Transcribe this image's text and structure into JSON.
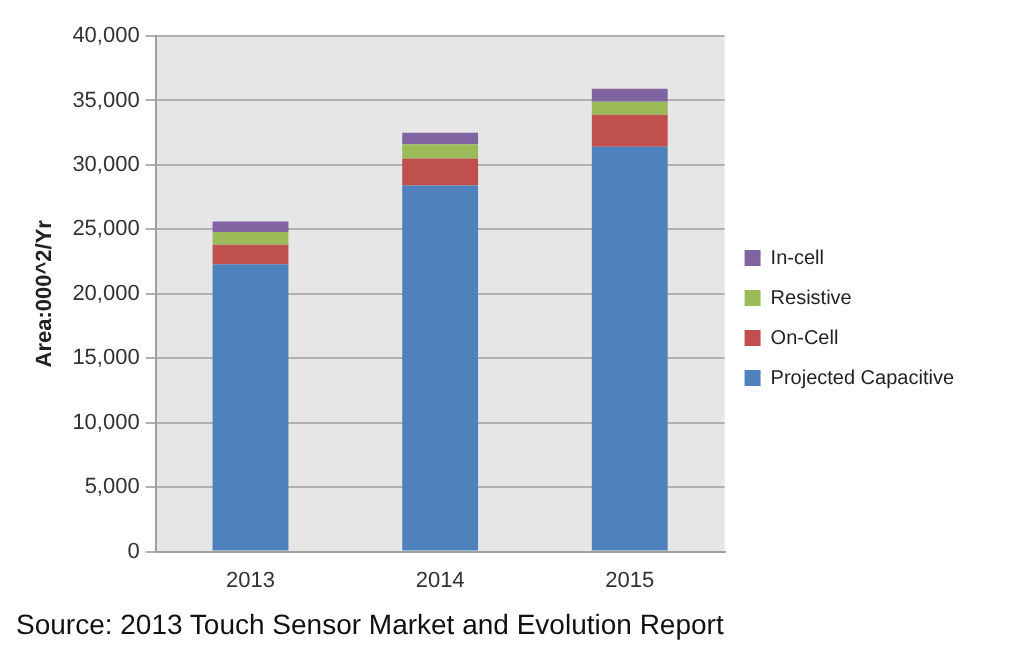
{
  "chart_data": {
    "type": "bar",
    "stacked": true,
    "categories": [
      "2013",
      "2014",
      "2015"
    ],
    "series": [
      {
        "name": "Projected Capacitive",
        "color": "#4f81bd",
        "values": [
          22300,
          28400,
          31400
        ]
      },
      {
        "name": "On-Cell",
        "color": "#c0504d",
        "values": [
          1500,
          2100,
          2500
        ]
      },
      {
        "name": "Resistive",
        "color": "#9bbb59",
        "values": [
          1000,
          1100,
          1000
        ]
      },
      {
        "name": "In-cell",
        "color": "#8064a2",
        "values": [
          800,
          900,
          1000
        ]
      }
    ],
    "ylabel": "Area:000^2/Yr",
    "ylim": [
      0,
      40000
    ],
    "yticks": [
      0,
      {
        "value": 5000,
        "label": "5,000"
      },
      {
        "value": 10000,
        "label": "10,000"
      },
      {
        "value": 15000,
        "label": "15,000"
      },
      {
        "value": 20000,
        "label": "20,000"
      },
      {
        "value": 25000,
        "label": "25,000"
      },
      {
        "value": 30000,
        "label": "30,000"
      },
      {
        "value": 35000,
        "label": "35,000"
      },
      {
        "value": 40000,
        "label": "40,000"
      }
    ],
    "grid": "y",
    "legend": "right",
    "annotations": [
      "Source: 2013 Touch Sensor Market and Evolution Report"
    ]
  }
}
